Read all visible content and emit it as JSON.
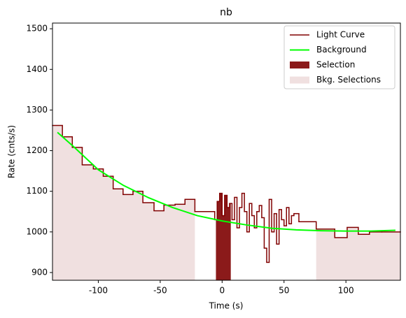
{
  "chart_data": {
    "type": "step",
    "title": "nb",
    "x_label": "Time (s)",
    "y_label": "Rate (cnts/s)",
    "xlim": [
      -137,
      144
    ],
    "ylim": [
      881,
      1514
    ],
    "xticks": [
      -100,
      -50,
      0,
      50,
      100
    ],
    "yticks": [
      900,
      1000,
      1100,
      1200,
      1300,
      1400,
      1500
    ],
    "legend": "upper right",
    "light_curve": {
      "name": "Light Curve",
      "color": "#800000",
      "bins": [
        -137,
        -129,
        -121,
        -113,
        -104,
        -96,
        -88,
        -80,
        -72,
        -64,
        -55,
        -47,
        -38,
        -30,
        -22,
        -14,
        -6,
        -4,
        -2,
        0,
        2,
        4,
        6,
        8,
        10,
        12,
        14,
        16,
        18,
        20,
        22,
        24,
        26,
        28,
        30,
        32,
        34,
        36,
        38,
        40,
        42,
        44,
        46,
        48,
        50,
        52,
        54,
        56,
        58,
        62,
        76,
        91,
        101,
        110,
        119,
        129,
        144
      ],
      "values": [
        1262,
        1234,
        1208,
        1165,
        1155,
        1137,
        1106,
        1092,
        1100,
        1072,
        1052,
        1066,
        1068,
        1080,
        1050,
        1050,
        1030,
        1075,
        1095,
        1040,
        1090,
        1060,
        1070,
        1030,
        1085,
        1010,
        1060,
        1095,
        1050,
        1000,
        1070,
        1040,
        1010,
        1050,
        1065,
        1035,
        960,
        925,
        1080,
        1000,
        1045,
        970,
        1055,
        1030,
        1015,
        1060,
        1020,
        1040,
        1045,
        1025,
        1007,
        986,
        1011,
        994,
        1000,
        1000
      ]
    },
    "background": {
      "name": "Background",
      "color": "#00ff00",
      "x": [
        -133,
        -120,
        -100,
        -80,
        -60,
        -40,
        -20,
        0,
        20,
        40,
        60,
        80,
        100,
        120,
        140
      ],
      "values": [
        1245,
        1210,
        1153,
        1115,
        1085,
        1060,
        1040,
        1027,
        1017,
        1009,
        1005,
        1003,
        1002,
        1002,
        1004
      ]
    },
    "selections": [
      {
        "name": "Selection",
        "color": "#8b1a1a",
        "ranges": [
          [
            -5,
            7
          ]
        ]
      },
      {
        "name": "Bkg. Selections",
        "color": "#f0e0e0",
        "ranges": [
          [
            -137,
            -22
          ],
          [
            76,
            144
          ]
        ]
      }
    ]
  }
}
